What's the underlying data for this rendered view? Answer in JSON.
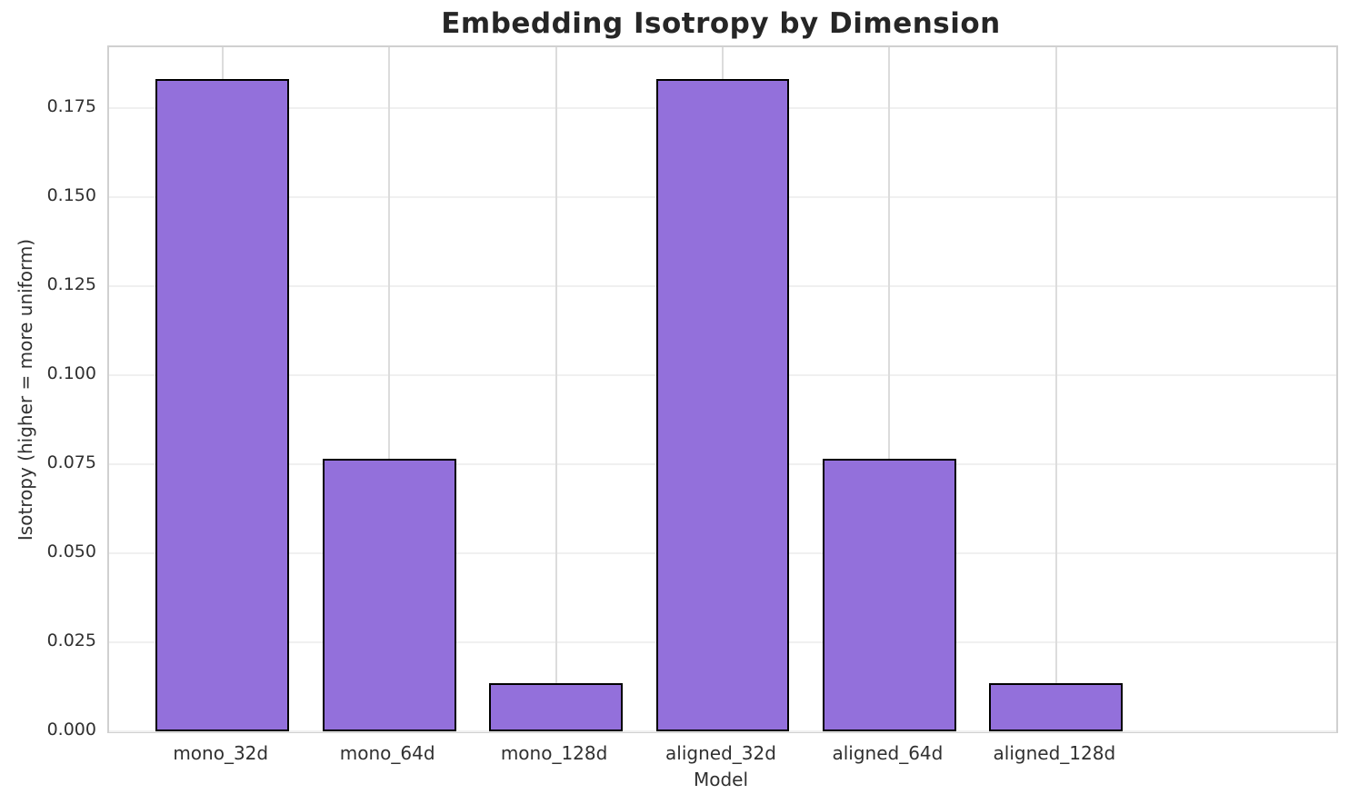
{
  "chart_data": {
    "type": "bar",
    "title": "Embedding Isotropy by Dimension",
    "xlabel": "Model",
    "ylabel": "Isotropy (higher = more uniform)",
    "categories": [
      "mono_32d",
      "mono_64d",
      "mono_128d",
      "aligned_32d",
      "aligned_64d",
      "aligned_128d"
    ],
    "values": [
      0.183,
      0.0765,
      0.0135,
      0.183,
      0.0765,
      0.0135
    ],
    "ylim": [
      0,
      0.192
    ],
    "yticks": [
      "0.000",
      "0.025",
      "0.050",
      "0.075",
      "0.100",
      "0.125",
      "0.150",
      "0.175"
    ],
    "grid": true,
    "legend": false,
    "colors": {
      "bar_fill": "#9370DB",
      "bar_edge": "#000000",
      "grid_horizontal": "#f0f0f0",
      "grid_vertical": "#dcdcdc",
      "spine": "#d0d0d0",
      "title_text": "#262626",
      "tick_text": "#303030"
    }
  }
}
